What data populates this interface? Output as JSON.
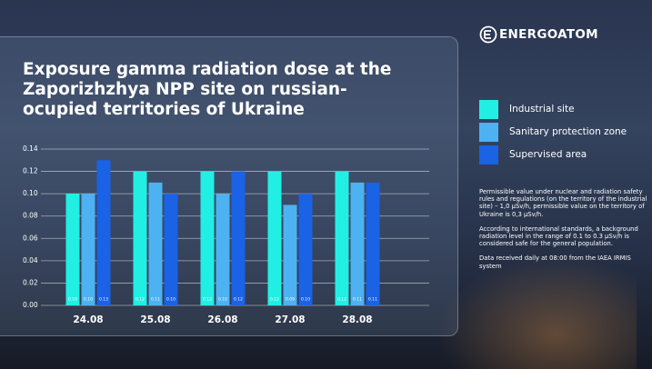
{
  "brand": "ENERGOATOM",
  "notes": [
    "Permissible value under nuclear and radiation safety rules and regulations (on the territory of the industrial site) – 1,0 μSv/h, permissible value on the territory of Ukraine is 0,3 μSv/h.",
    "According to international standards, a background radiation level in the range of 0.1 to 0.3 μSv/h is considered safe for the general population.",
    "Data received daily at 08:00 from the IAEA IRMIS system"
  ],
  "chart_data": {
    "type": "bar",
    "title": "Exposure gamma radiation dose at the Zaporizhzhya NPP site on russian-ocupied territories of Ukraine",
    "categories": [
      "24.08",
      "25.08",
      "26.08",
      "27.08",
      "28.08"
    ],
    "series": [
      {
        "name": "Industrial site",
        "color": "#22efe4",
        "values": [
          0.1,
          0.12,
          0.12,
          0.12,
          0.12
        ],
        "value_labels": [
          "0.10",
          "0.12",
          "0.12",
          "0.12",
          "0.12"
        ]
      },
      {
        "name": "Sanitary protection zone",
        "color": "#4db2f2",
        "values": [
          0.1,
          0.11,
          0.1,
          0.09,
          0.11
        ],
        "value_labels": [
          "0.10",
          "0.11",
          "0.10",
          "0.09",
          "0.11"
        ]
      },
      {
        "name": "Supervised area",
        "color": "#1a62e6",
        "values": [
          0.13,
          0.1,
          0.12,
          0.1,
          0.11
        ],
        "value_labels": [
          "0.13",
          "0.10",
          "0.12",
          "0.10",
          "0.11"
        ]
      }
    ],
    "ylim": [
      0,
      0.14
    ],
    "yticks": [
      {
        "value": 0,
        "label": "0.00"
      },
      {
        "value": 0.02,
        "label": "0.02"
      },
      {
        "value": 0.04,
        "label": "0.04"
      },
      {
        "value": 0.06,
        "label": "0.06"
      },
      {
        "value": 0.08,
        "label": "0.08"
      },
      {
        "value": 0.1,
        "label": "0.10"
      },
      {
        "value": 0.12,
        "label": "0.12"
      },
      {
        "value": 0.14,
        "label": "0.14"
      }
    ],
    "grid": true,
    "legend": "right"
  }
}
